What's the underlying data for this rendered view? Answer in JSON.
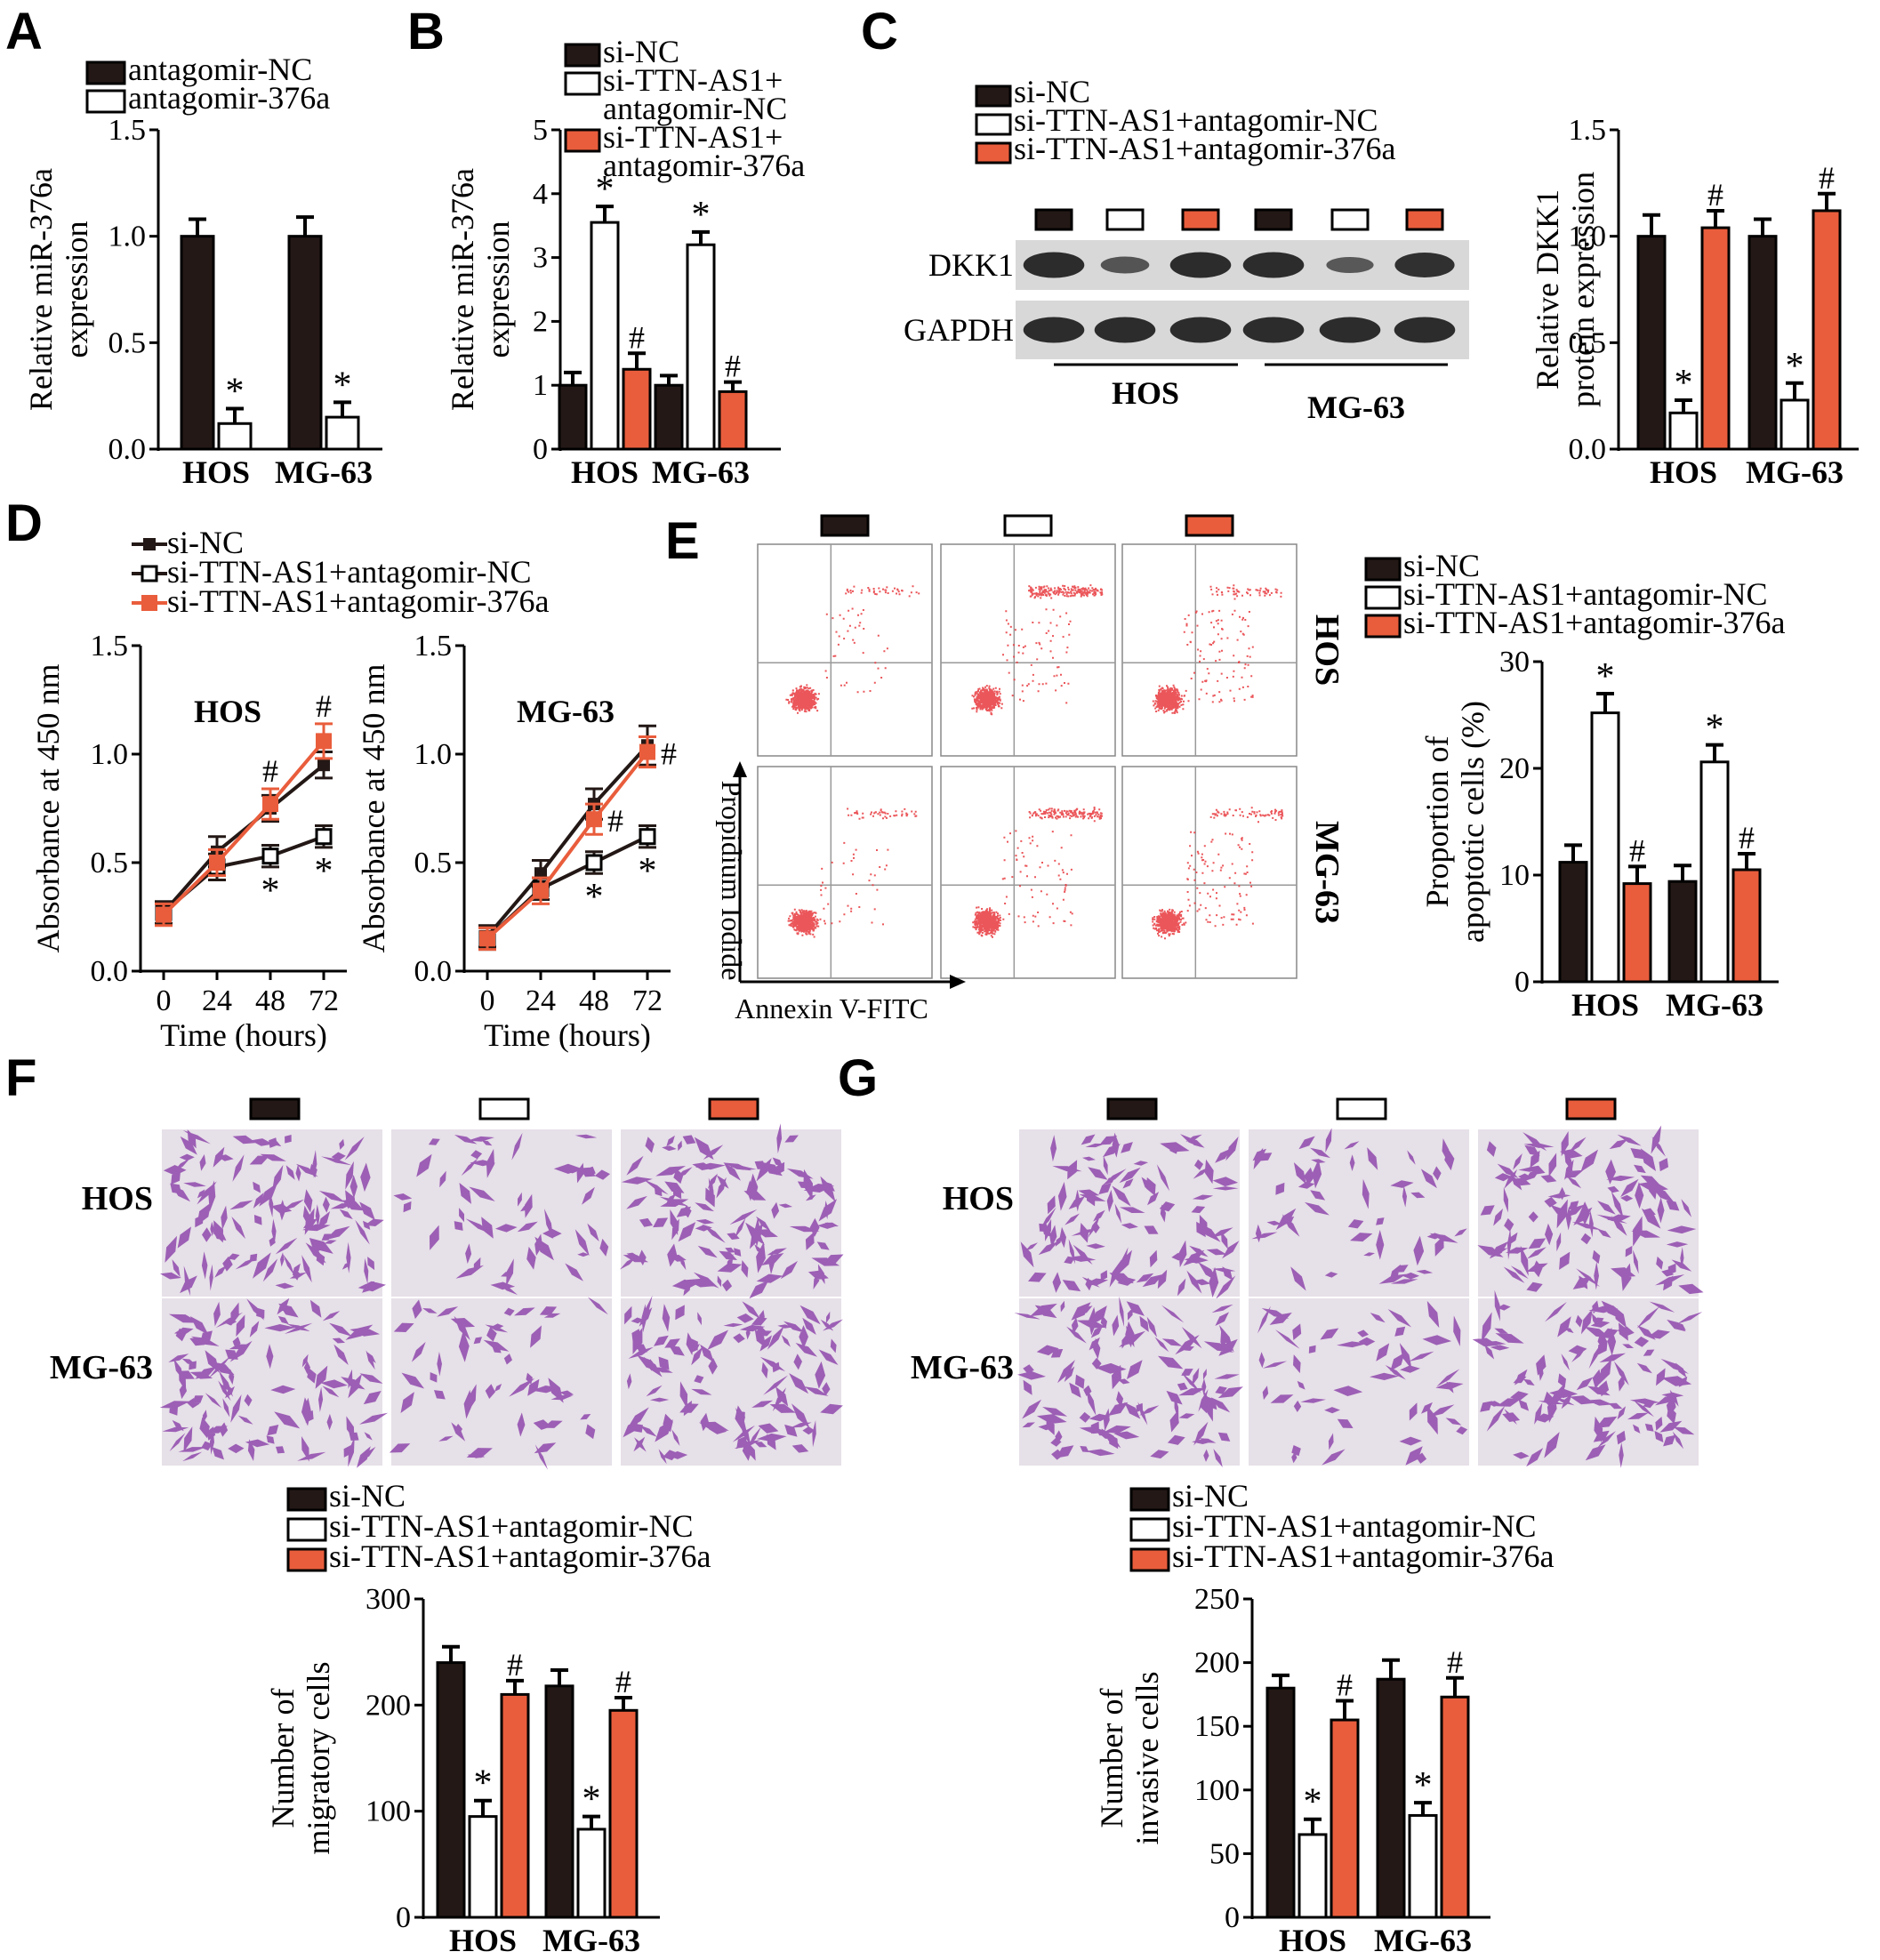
{
  "colors": {
    "black": "#231815",
    "white": "#ffffff",
    "orange": "#e95d3c",
    "dot": "#e8383d"
  },
  "panels": {
    "A": {
      "letter": "A"
    },
    "B": {
      "letter": "B"
    },
    "C": {
      "letter": "C"
    },
    "D": {
      "letter": "D"
    },
    "E": {
      "letter": "E"
    },
    "F": {
      "letter": "F"
    },
    "G": {
      "letter": "G"
    }
  },
  "western_blot": {
    "bands": [
      {
        "label": "DKK1",
        "intensities": [
          0.95,
          0.45,
          0.95,
          0.95,
          0.4,
          0.9
        ]
      },
      {
        "label": "GAPDH",
        "intensities": [
          0.95,
          0.95,
          0.95,
          0.95,
          0.95,
          0.95
        ]
      }
    ],
    "groups": [
      "HOS",
      "MG-63"
    ]
  },
  "flow": {
    "xlabel": "Annexin V-FITC",
    "ylabel": "Propidium Iodide",
    "rows": [
      "HOS",
      "MG-63"
    ]
  },
  "transwell": {
    "F": {
      "rows": [
        "HOS",
        "MG-63"
      ]
    },
    "G": {
      "rows": [
        "HOS",
        "MG-63"
      ]
    }
  },
  "chart_data": [
    {
      "id": "A",
      "type": "bar",
      "categories": [
        "HOS",
        "MG-63"
      ],
      "series": [
        {
          "name": "antagomir-NC",
          "values": [
            1.0,
            1.0
          ],
          "errors": [
            0.08,
            0.09
          ],
          "marks": [
            "",
            ""
          ]
        },
        {
          "name": "antagomir-376a",
          "values": [
            0.12,
            0.15
          ],
          "errors": [
            0.07,
            0.07
          ],
          "marks": [
            "*",
            "*"
          ]
        }
      ],
      "ylabel": [
        "Relative miR-376a",
        "expression"
      ],
      "ylim": [
        0,
        1.5
      ],
      "yticks": [
        "0.0",
        "0.5",
        "1.0",
        "1.5"
      ],
      "legend": "top"
    },
    {
      "id": "B",
      "type": "bar",
      "categories": [
        "HOS",
        "MG-63"
      ],
      "series": [
        {
          "name": "si-NC",
          "values": [
            1.0,
            1.0
          ],
          "errors": [
            0.2,
            0.15
          ],
          "marks": [
            "",
            ""
          ]
        },
        {
          "name": "si-TTN-AS1+|antagomir-NC",
          "values": [
            3.55,
            3.2
          ],
          "errors": [
            0.25,
            0.2
          ],
          "marks": [
            "*",
            "*"
          ]
        },
        {
          "name": "si-TTN-AS1+|antagomir-376a",
          "values": [
            1.25,
            0.9
          ],
          "errors": [
            0.25,
            0.15
          ],
          "marks": [
            "#",
            "#"
          ]
        }
      ],
      "ylabel": [
        "Relative miR-376a",
        "expression"
      ],
      "ylim": [
        0,
        5
      ],
      "yticks": [
        "0",
        "1",
        "2",
        "3",
        "4",
        "5"
      ],
      "legend": "top"
    },
    {
      "id": "C",
      "type": "bar",
      "categories": [
        "HOS",
        "MG-63"
      ],
      "series": [
        {
          "name": "si-NC",
          "values": [
            1.0,
            1.0
          ],
          "errors": [
            0.1,
            0.08
          ],
          "marks": [
            "",
            ""
          ]
        },
        {
          "name": "si-TTN-AS1+antagomir-NC",
          "values": [
            0.17,
            0.23
          ],
          "errors": [
            0.06,
            0.08
          ],
          "marks": [
            "*",
            "*"
          ]
        },
        {
          "name": "si-TTN-AS1+antagomir-376a",
          "values": [
            1.04,
            1.12
          ],
          "errors": [
            0.08,
            0.08
          ],
          "marks": [
            "#",
            "#"
          ]
        }
      ],
      "ylabel": [
        "Relative DKK1",
        "protein expression"
      ],
      "ylim": [
        0,
        1.5
      ],
      "yticks": [
        "0.0",
        "0.5",
        "1.0",
        "1.5"
      ],
      "legend": "top"
    },
    {
      "id": "D1",
      "type": "line",
      "title": "HOS",
      "x": [
        0,
        24,
        48,
        72
      ],
      "series": [
        {
          "name": "si-NC",
          "values": [
            0.27,
            0.55,
            0.75,
            0.95
          ],
          "errors": [
            0.05,
            0.07,
            0.06,
            0.06
          ],
          "marks": [
            "",
            "",
            "",
            ""
          ]
        },
        {
          "name": "si-TTN-AS1+antagomir-NC",
          "values": [
            0.27,
            0.48,
            0.53,
            0.62
          ],
          "errors": [
            0.05,
            0.06,
            0.05,
            0.05
          ],
          "marks": [
            "",
            "",
            "*",
            "*"
          ]
        },
        {
          "name": "si-TTN-AS1+antagomir-376a",
          "values": [
            0.26,
            0.5,
            0.77,
            1.06
          ],
          "errors": [
            0.05,
            0.06,
            0.07,
            0.08
          ],
          "marks": [
            "",
            "",
            "#",
            "#"
          ]
        }
      ],
      "xlabel": "Time (hours)",
      "ylabel": "Absorbance at 450 nm",
      "ylim": [
        0,
        1.5
      ],
      "yticks": [
        "0.0",
        "0.5",
        "1.0",
        "1.5"
      ],
      "legend": "top"
    },
    {
      "id": "D2",
      "type": "line",
      "title": "MG-63",
      "x": [
        0,
        24,
        48,
        72
      ],
      "series": [
        {
          "name": "si-NC",
          "values": [
            0.16,
            0.45,
            0.77,
            1.04
          ],
          "errors": [
            0.05,
            0.06,
            0.07,
            0.09
          ],
          "marks": [
            "",
            "",
            "",
            ""
          ]
        },
        {
          "name": "si-TTN-AS1+antagomir-NC",
          "values": [
            0.15,
            0.38,
            0.5,
            0.62
          ],
          "errors": [
            0.05,
            0.05,
            0.05,
            0.05
          ],
          "marks": [
            "",
            "",
            "*",
            "*"
          ]
        },
        {
          "name": "si-TTN-AS1+antagomir-376a",
          "values": [
            0.15,
            0.37,
            0.7,
            1.01
          ],
          "errors": [
            0.05,
            0.06,
            0.07,
            0.07
          ],
          "marks": [
            "",
            "",
            "#",
            "#"
          ]
        }
      ],
      "xlabel": "Time (hours)",
      "ylabel": "Absorbance at 450 nm",
      "ylim": [
        0,
        1.5
      ],
      "yticks": [
        "0.0",
        "0.5",
        "1.0",
        "1.5"
      ]
    },
    {
      "id": "E",
      "type": "bar",
      "categories": [
        "HOS",
        "MG-63"
      ],
      "series": [
        {
          "name": "si-NC",
          "values": [
            11.2,
            9.4
          ],
          "errors": [
            1.6,
            1.5
          ],
          "marks": [
            "",
            ""
          ]
        },
        {
          "name": "si-TTN-AS1+antagomir-NC",
          "values": [
            25.2,
            20.6
          ],
          "errors": [
            1.8,
            1.6
          ],
          "marks": [
            "*",
            "*"
          ]
        },
        {
          "name": "si-TTN-AS1+antagomir-376a",
          "values": [
            9.2,
            10.5
          ],
          "errors": [
            1.6,
            1.5
          ],
          "marks": [
            "#",
            "#"
          ]
        }
      ],
      "ylabel": [
        "Proportion of",
        "apoptotic cells (%)"
      ],
      "ylim": [
        0,
        30
      ],
      "yticks": [
        "0",
        "10",
        "20",
        "30"
      ],
      "legend": "top"
    },
    {
      "id": "F",
      "type": "bar",
      "categories": [
        "HOS",
        "MG-63"
      ],
      "series": [
        {
          "name": "si-NC",
          "values": [
            240,
            218
          ],
          "errors": [
            15,
            15
          ],
          "marks": [
            "",
            ""
          ]
        },
        {
          "name": "si-TTN-AS1+antagomir-NC",
          "values": [
            95,
            83
          ],
          "errors": [
            15,
            12
          ],
          "marks": [
            "*",
            "*"
          ]
        },
        {
          "name": "si-TTN-AS1+antagomir-376a",
          "values": [
            210,
            195
          ],
          "errors": [
            13,
            12
          ],
          "marks": [
            "#",
            "#"
          ]
        }
      ],
      "ylabel": [
        "Number of",
        "migratory cells"
      ],
      "ylim": [
        0,
        300
      ],
      "yticks": [
        "0",
        "100",
        "200",
        "300"
      ],
      "legend": "top"
    },
    {
      "id": "G",
      "type": "bar",
      "categories": [
        "HOS",
        "MG-63"
      ],
      "series": [
        {
          "name": "si-NC",
          "values": [
            180,
            187
          ],
          "errors": [
            10,
            15
          ],
          "marks": [
            "",
            ""
          ]
        },
        {
          "name": "si-TTN-AS1+antagomir-NC",
          "values": [
            65,
            80
          ],
          "errors": [
            12,
            10
          ],
          "marks": [
            "*",
            "*"
          ]
        },
        {
          "name": "si-TTN-AS1+antagomir-376a",
          "values": [
            155,
            173
          ],
          "errors": [
            15,
            15
          ],
          "marks": [
            "#",
            "#"
          ]
        }
      ],
      "ylabel": [
        "Number of",
        "invasive cells"
      ],
      "ylim": [
        0,
        250
      ],
      "yticks": [
        "0",
        "50",
        "100",
        "150",
        "200",
        "250"
      ],
      "legend": "top"
    }
  ]
}
